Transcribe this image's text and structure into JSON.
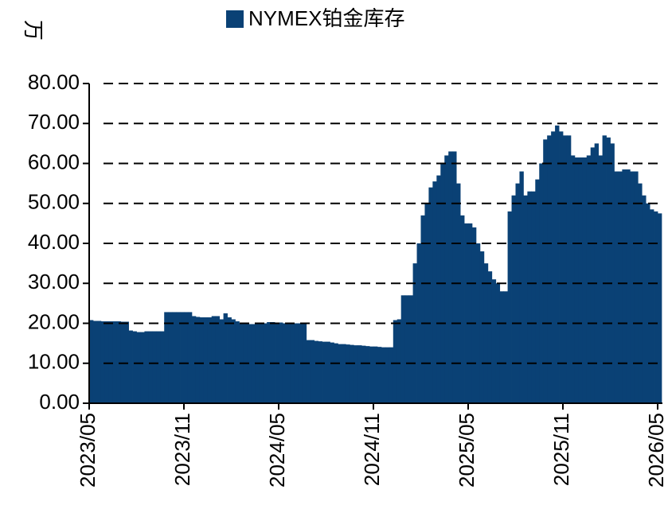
{
  "chart_data": {
    "type": "bar",
    "y_label": "万",
    "categories": [
      "2023/05",
      null,
      null,
      null,
      null,
      null,
      null,
      null,
      null,
      null,
      null,
      null,
      null,
      null,
      null,
      null,
      null,
      null,
      null,
      null,
      null,
      null,
      null,
      null,
      "2023/11",
      null,
      null,
      null,
      null,
      null,
      null,
      null,
      null,
      null,
      null,
      null,
      null,
      null,
      null,
      null,
      null,
      null,
      null,
      null,
      null,
      null,
      null,
      null,
      "2024/05",
      null,
      null,
      null,
      null,
      null,
      null,
      null,
      null,
      null,
      null,
      null,
      null,
      null,
      null,
      null,
      null,
      null,
      null,
      null,
      null,
      null,
      null,
      null,
      "2024/11",
      null,
      null,
      null,
      null,
      null,
      null,
      null,
      null,
      null,
      null,
      null,
      null,
      null,
      null,
      null,
      null,
      null,
      null,
      null,
      null,
      null,
      null,
      null,
      "2025/05",
      null,
      null,
      null,
      null,
      null,
      null,
      null,
      null,
      null,
      null,
      null,
      null,
      null,
      null,
      null,
      null,
      null,
      null,
      null,
      null,
      null,
      null,
      null,
      "2025/11",
      null,
      null,
      null,
      null,
      null,
      null,
      null,
      null,
      null,
      null,
      null,
      null,
      null,
      null,
      null,
      null,
      null,
      null,
      null,
      null,
      null,
      null,
      null,
      "2026/05"
    ],
    "series": [
      {
        "name": "NYMEX铂金库存",
        "color": "#0a4175",
        "values": [
          20.8,
          20.6,
          20.6,
          20.5,
          20.5,
          20.5,
          20.5,
          20.5,
          20.4,
          20.4,
          18.2,
          18.0,
          17.8,
          17.8,
          18.0,
          18.0,
          18.0,
          18.0,
          18.0,
          22.8,
          22.8,
          22.8,
          22.8,
          22.8,
          22.8,
          22.8,
          21.8,
          21.6,
          21.5,
          21.5,
          21.5,
          21.8,
          21.8,
          21.0,
          22.5,
          21.5,
          21.0,
          20.5,
          20.0,
          19.8,
          19.8,
          19.8,
          20.0,
          20.0,
          20.0,
          20.3,
          20.3,
          20.2,
          20.2,
          20.0,
          20.0,
          20.0,
          20.0,
          20.0,
          20.0,
          15.8,
          15.8,
          15.6,
          15.5,
          15.4,
          15.4,
          15.2,
          15.0,
          14.8,
          14.8,
          14.7,
          14.6,
          14.5,
          14.5,
          14.4,
          14.3,
          14.2,
          14.2,
          14.1,
          14.0,
          14.0,
          14.0,
          20.8,
          21.0,
          27.0,
          27.0,
          27.0,
          35.0,
          40.0,
          47.0,
          50.0,
          54.0,
          55.5,
          57.0,
          60.0,
          62.0,
          63.0,
          63.0,
          55.0,
          47.0,
          45.0,
          45.0,
          44.0,
          40.0,
          38.0,
          35.0,
          33.0,
          31.0,
          30.0,
          28.0,
          28.0,
          48.0,
          52.0,
          55.0,
          58.0,
          52.0,
          53.0,
          53.0,
          56.0,
          60.0,
          66.0,
          67.0,
          68.0,
          69.5,
          68.0,
          67.0,
          67.0,
          62.0,
          61.5,
          61.5,
          61.5,
          62.0,
          64.0,
          65.0,
          62.0,
          67.0,
          66.5,
          65.0,
          58.0,
          58.0,
          58.5,
          58.5,
          58.0,
          58.0,
          55.0,
          52.0,
          50.0,
          48.5,
          48.0,
          47.5
        ]
      }
    ],
    "ylim": [
      0,
      80
    ],
    "yticks": [
      {
        "value": 0,
        "label": "0.00"
      },
      {
        "value": 10,
        "label": "10.00"
      },
      {
        "value": 20,
        "label": "20.00"
      },
      {
        "value": 30,
        "label": "30.00"
      },
      {
        "value": 40,
        "label": "40.00"
      },
      {
        "value": 50,
        "label": "50.00"
      },
      {
        "value": 60,
        "label": "60.00"
      },
      {
        "value": 70,
        "label": "70.00"
      },
      {
        "value": 80,
        "label": "80.00"
      }
    ],
    "grid": true,
    "legend": "top"
  }
}
